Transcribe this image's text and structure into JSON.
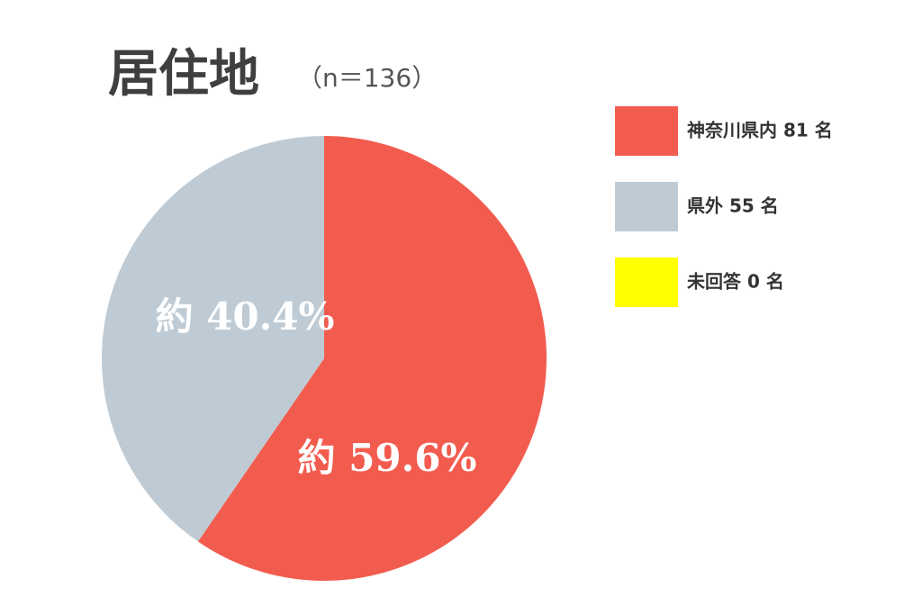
{
  "chart_data": {
    "type": "pie",
    "title": "居住地",
    "subtitle": "（n＝136）",
    "categories": [
      "神奈川県内 81 名",
      "県外 55 名",
      "未回答 0 名"
    ],
    "values": [
      59.6,
      40.4,
      0
    ],
    "value_labels": [
      "約 59.6%",
      "約 40.4%",
      null
    ],
    "colors": [
      "#f25c4f",
      "#bfcbd4",
      "#ffff00"
    ],
    "legend": "right"
  }
}
